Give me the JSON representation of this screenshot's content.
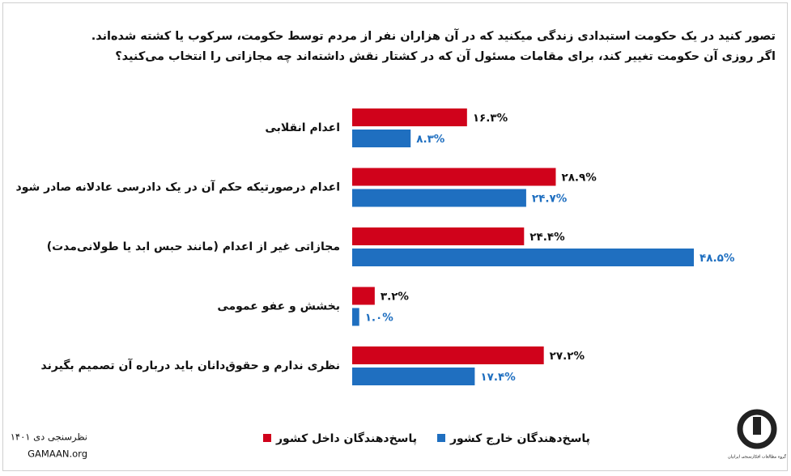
{
  "chart_data": {
    "type": "bar",
    "orientation": "horizontal",
    "title": [
      "تصور کنید در یک حکومت استبدادی زندگی میکنید که در آن هزاران نفر از مردم توسط حکومت، سرکوب یا کشته شده‌اند.",
      "اگر روزی آن حکومت تغییر کند، برای مقامات مسئول آن که در کشتار نقش داشته‌اند چه مجازاتی را انتخاب می‌کنید؟"
    ],
    "categories": [
      "اعدام انقلابی",
      "اعدام درصورتیکه حکم آن در یک دادرسی عادلانه صادر شود",
      "مجازاتی غیر از اعدام (مانند حبس ابد یا طولانی‌مدت)",
      "بخشش و عفو عمومی",
      "نظری ندارم و حقوق‌دانان باید درباره آن تصمیم بگیرند"
    ],
    "series": [
      {
        "name": "پاسخ‌دهندگان داخل کشور",
        "color": "#d0021b",
        "label_color": "#111111",
        "values": [
          16.3,
          28.9,
          24.4,
          3.2,
          27.2
        ],
        "value_labels": [
          "۱۶.۳%",
          "۲۸.۹%",
          "۲۴.۴%",
          "۳.۲%",
          "۲۷.۲%"
        ]
      },
      {
        "name": "پاسخ‌دهندگان خارج کشور",
        "color": "#1f6fc0",
        "label_color": "#1f6fc0",
        "values": [
          8.3,
          24.7,
          48.5,
          1.0,
          17.4
        ],
        "value_labels": [
          "۸.۳%",
          "۲۴.۷%",
          "۴۸.۵%",
          "۱.۰%",
          "۱۷.۴%"
        ]
      }
    ],
    "grid": false,
    "source": "نظرسنجی دی ۱۴۰۱",
    "website": "GAMAAN.org",
    "logo_text": "گروه مطالعات افکارسنجی ایرانیان"
  }
}
